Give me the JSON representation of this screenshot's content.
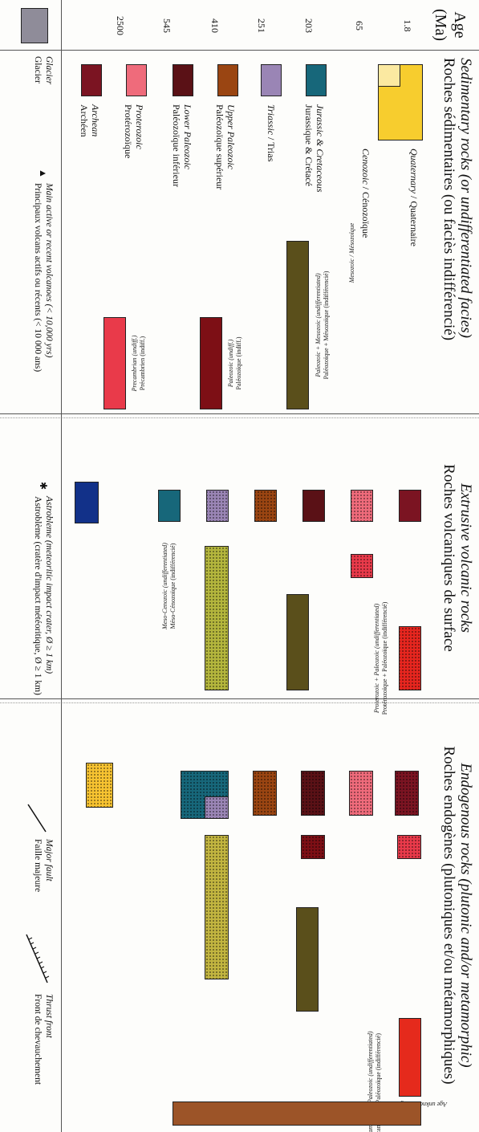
{
  "header": {
    "age": "Age\n(Ma)",
    "sedimentary_en": "Sedimentary rocks (or undifferentiated facies)",
    "sedimentary_fr": "Roches sédimentaires (ou faciès indifférencié)",
    "extrusive_en": "Extrusive volcanic rocks",
    "extrusive_fr": "Roches volcaniques de surface",
    "endogenous_en": "Endogenous rocks (plutonic and/or metamorphic)",
    "endogenous_fr": "Roches endogènes (plutoniques et/ou métamorphiques)"
  },
  "ages": [
    "1.8",
    "65",
    "203",
    "251",
    "410",
    "545",
    "2500"
  ],
  "sed_labels": [
    {
      "en": "Quaternary",
      "fr": " / Quaternaire"
    },
    {
      "en": "Cenozoic",
      "fr": " / Cénozoïque"
    },
    {
      "en": "Jurassic & Cretaceous",
      "fr": "Jurassique & Crétacé"
    },
    {
      "en": "Triassic",
      "fr": " / Trias"
    },
    {
      "en": "Upper Paleozoic",
      "fr": "Paléozoïque supérieur"
    },
    {
      "en": "Lower Paleozoic",
      "fr": "Paléozoïque inférieur"
    },
    {
      "en": "Proterozoic",
      "fr": "Protérozoïque"
    },
    {
      "en": "Archean",
      "fr": "Archéen"
    }
  ],
  "small_notes": {
    "mesozoic": "Mesozoic / Mésozoïque",
    "paleo_meso_en": "Paleozoic + Mesozoic (undifferentiated)",
    "paleo_meso_fr": "Paléozoïque + Mésozoïque (indifférencié)",
    "paleozoic_en": "Paleozoic (undiff.)",
    "paleozoic_fr": "Paléozoïque (indiff.)",
    "precambrian_en": "Precambrian (undiff.)",
    "precambrian_fr": "Précambrien (indiff.)",
    "meso_ceno_en": "Meso-Cenozoic (undifferentiated)",
    "meso_ceno_fr": "Méso-Cénozoïque (indifférencié)",
    "prot_paleo_en": "Proterozoic + Paleozoic (undifferentiated)",
    "prot_paleo_fr": "Protérozoïque + Paléozoïque (indifférencié)",
    "prec_paleo_en": "Precambrian + Paleozoic (undifferentiated)",
    "prec_paleo_fr": "Précambrien + Paléozoïque (indifférencié)",
    "age_unknown": "Age unknown / Âge indéterminé"
  },
  "legend": {
    "glacier_en": "Glacier",
    "glacier_fr": "Glacier",
    "volcano_en": "Main active or recent volcanoes (< 10,000 yrs)",
    "volcano_fr": "Principaux volcans actifs ou récents (< 10 000 ans)",
    "astro_en": "Astrobleme (meteoritic impact crater, Ø ≥ 1 km)",
    "astro_fr": "Astroblème (cratère d'impact météoritique, Ø ≥ 1 km)",
    "fault_en": "Major fault",
    "fault_fr": "Faille majeure",
    "thrust_en": "Thrust front",
    "thrust_fr": "Front de chevauchement"
  },
  "colors": {
    "quaternary": "#fbe9a1",
    "cenozoic": "#f7cd2e",
    "jurassic_cretaceous": "#17677a",
    "triassic": "#9a85b5",
    "upper_paleozoic": "#9a4512",
    "lower_paleozoic": "#5a1116",
    "proterozoic": "#ef6b7b",
    "archean": "#7b1422",
    "paleo_meso": "#5a4f1b",
    "paleozoic_undiff": "#7d0f15",
    "precambrian_undiff": "#e93a4a",
    "volc_cenozoic": "#123189",
    "volc_meso_ceno": "#b4b63d",
    "volc_prot_paleo": "#e6261f",
    "endo_cenozoic": "#f7c331",
    "endo_meso_ceno": "#c2b540",
    "endo_prec_paleo": "#e52a1c",
    "endo_unknown": "#9c5428",
    "glacier": "#8f8c99"
  }
}
